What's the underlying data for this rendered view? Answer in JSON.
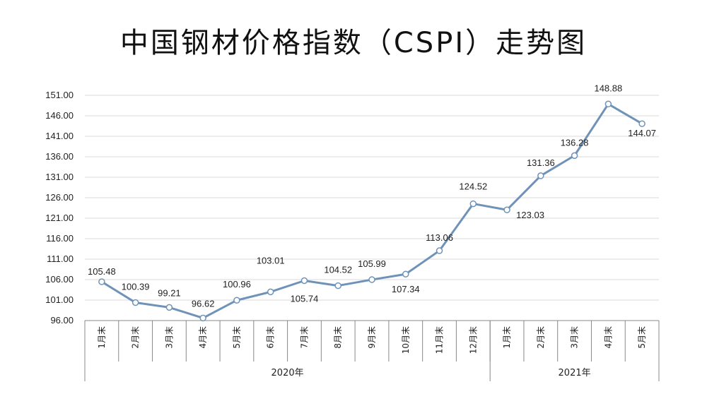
{
  "chart_data": {
    "type": "line",
    "title": "中国钢材价格指数（CSPI）走势图",
    "categories": [
      "1月末",
      "2月末",
      "3月末",
      "4月末",
      "5月末",
      "6月末",
      "7月末",
      "8月末",
      "9月末",
      "10月末",
      "11月末",
      "12月末",
      "1月末",
      "2月末",
      "3月末",
      "4月末",
      "5月末"
    ],
    "groups": [
      {
        "label": "2020年",
        "start": 0,
        "end": 11
      },
      {
        "label": "2021年",
        "start": 12,
        "end": 16
      }
    ],
    "series": [
      {
        "values": [
          105.48,
          100.39,
          99.21,
          96.62,
          100.96,
          103.01,
          105.74,
          104.52,
          105.99,
          107.34,
          113.06,
          124.52,
          123.03,
          131.36,
          136.28,
          148.88,
          144.07
        ]
      }
    ],
    "data_labels": [
      "105.48",
      "100.39",
      "99.21",
      "96.62",
      "100.96",
      "103.01",
      "105.74",
      "104.52",
      "105.99",
      "107.34",
      "113.06",
      "124.52",
      "123.03",
      "131.36",
      "136.28",
      "148.88",
      "144.07"
    ],
    "yticks": [
      "96.00",
      "101.00",
      "106.00",
      "111.00",
      "116.00",
      "121.00",
      "126.00",
      "131.00",
      "136.00",
      "141.00",
      "146.00",
      "151.00"
    ],
    "ylim": [
      96,
      151
    ],
    "grid": true,
    "line_color": "#6f93b8"
  }
}
